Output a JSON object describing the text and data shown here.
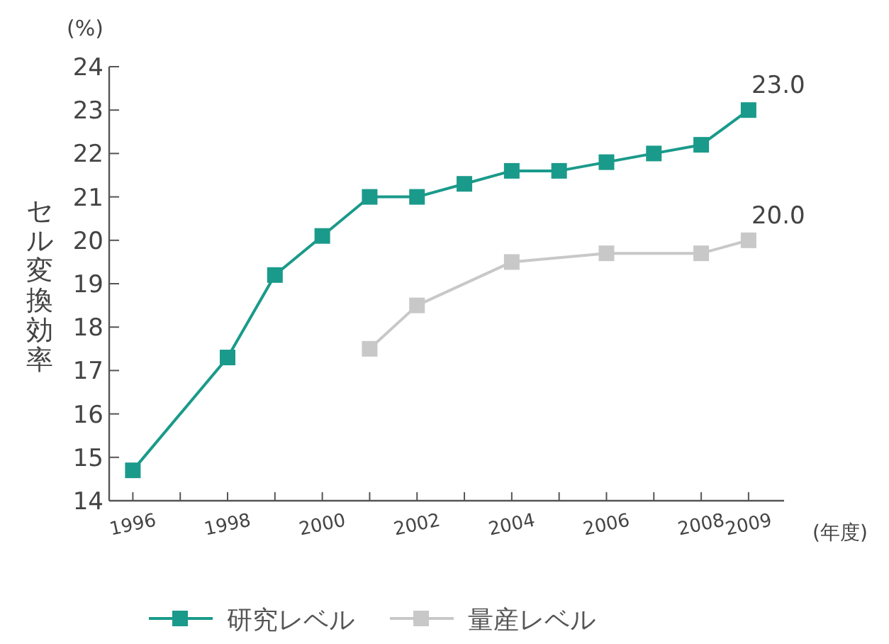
{
  "chart_data": {
    "type": "line",
    "xlabel": "(年度)",
    "ylabel": "セル変換効率",
    "annotations": [
      "(%)"
    ],
    "xlim": [
      1995.5,
      2009.75
    ],
    "xticks": [
      1996,
      {
        "value": 1997,
        "label": null
      },
      1998,
      {
        "value": 1999,
        "label": null
      },
      2000,
      {
        "value": 2001,
        "label": null
      },
      2002,
      {
        "value": 2003,
        "label": null
      },
      2004,
      {
        "value": 2005,
        "label": null
      },
      2006,
      {
        "value": 2007,
        "label": null
      },
      2008,
      2009
    ],
    "ylim": [
      14,
      24
    ],
    "yticks": [
      14,
      15,
      16,
      17,
      18,
      19,
      20,
      21,
      22,
      23,
      24
    ],
    "legend": "bottom",
    "marker": "square",
    "grid": false,
    "series": [
      {
        "name": "研究レベル",
        "color": "#1a9a8a",
        "x": [
          1996,
          1998,
          1999,
          2000,
          2001,
          2002,
          2003,
          2004,
          2005,
          2006,
          2007,
          2008,
          2009
        ],
        "values": [
          14.7,
          17.3,
          19.2,
          20.1,
          21.0,
          21.0,
          21.3,
          21.6,
          21.6,
          21.8,
          22.0,
          22.2,
          23.0
        ],
        "value_labels": [
          null,
          null,
          null,
          null,
          null,
          null,
          null,
          null,
          null,
          null,
          null,
          null,
          "23.0"
        ]
      },
      {
        "name": "量産レベル",
        "color": "#c8c8c8",
        "x": [
          2001,
          2002,
          2004,
          2006,
          2008,
          2009
        ],
        "values": [
          17.5,
          18.5,
          19.5,
          19.7,
          19.7,
          20.0
        ],
        "value_labels": [
          null,
          null,
          null,
          null,
          null,
          "20.0"
        ]
      }
    ]
  }
}
